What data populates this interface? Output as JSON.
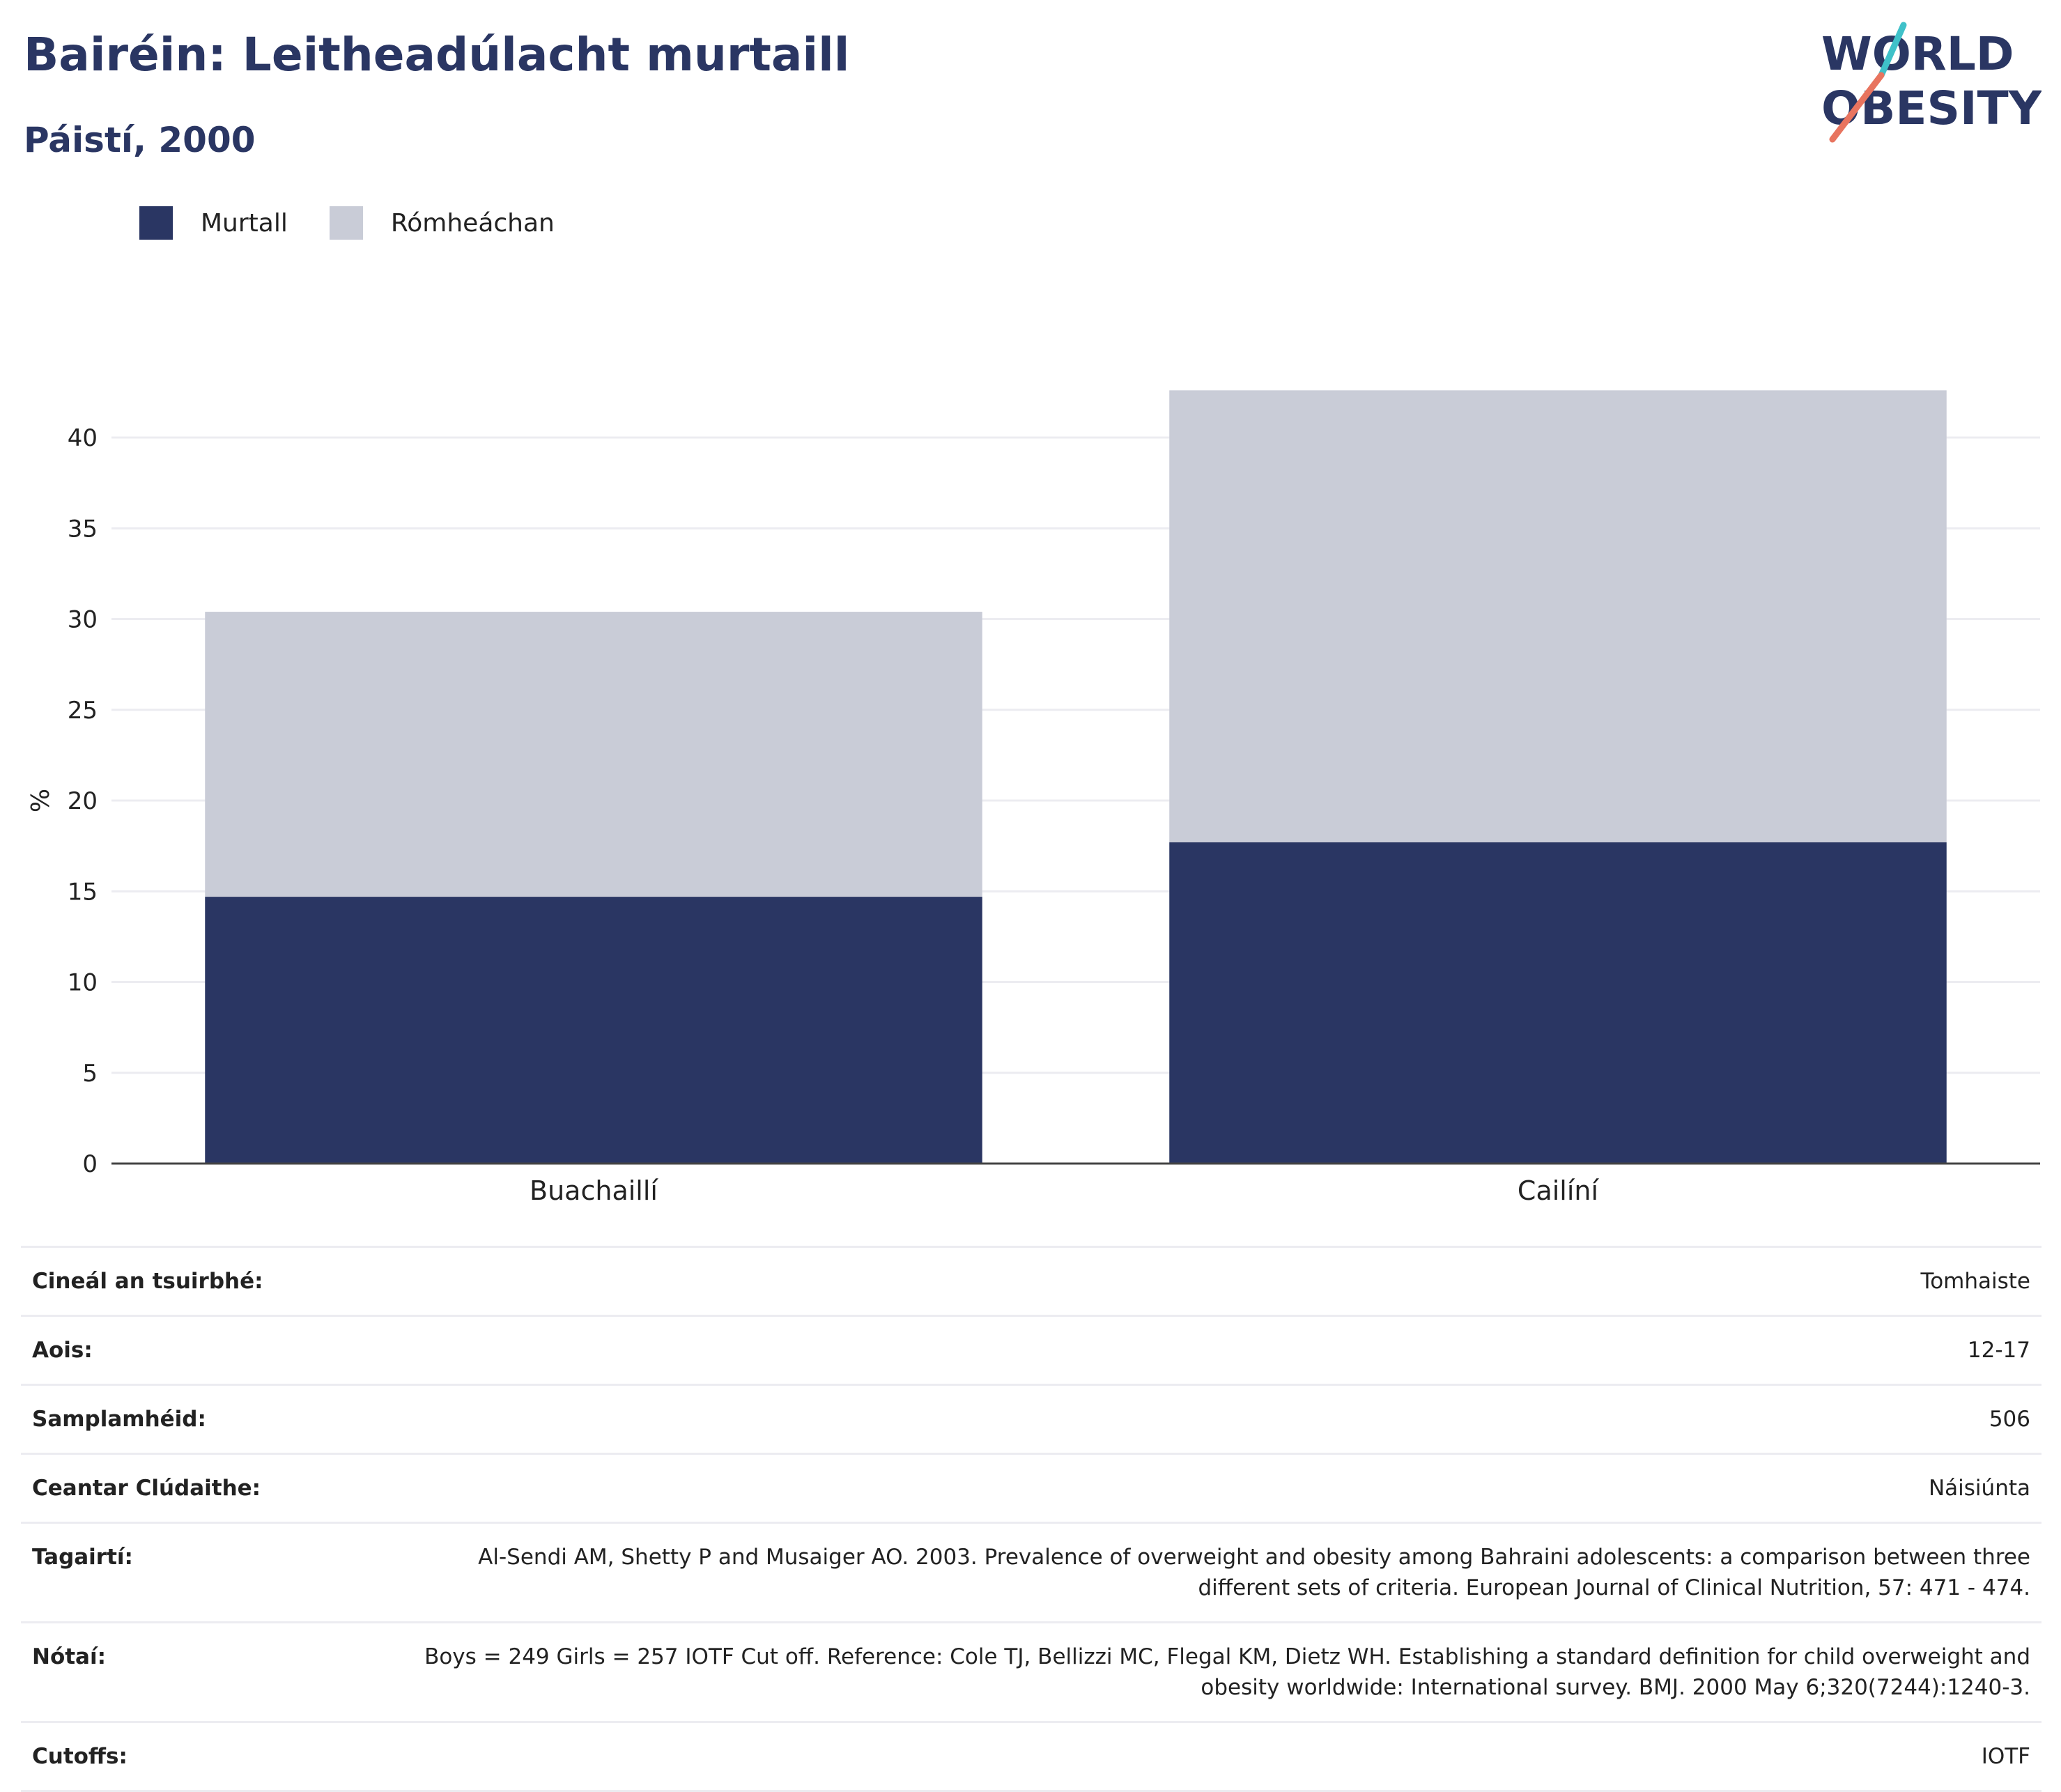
{
  "header": {
    "title": "Bairéin: Leitheadúlacht murtaill",
    "subtitle": "Páistí, 2000"
  },
  "logo": {
    "line1": "WORLD",
    "line2": "OBESITY",
    "icon": "world-obesity-logo"
  },
  "colors": {
    "title": "#2a3663",
    "obese": "#2a3663",
    "overweight": "#c9ccd7",
    "logo_teal": "#3fc1c9",
    "logo_coral": "#e8745f"
  },
  "chart_data": {
    "type": "bar",
    "stacked": true,
    "categories": [
      "Buachaillí",
      "Cailíní"
    ],
    "series": [
      {
        "name": "Murtall",
        "values": [
          14.7,
          17.7
        ],
        "color": "#2a3663"
      },
      {
        "name": "Rómheáchan",
        "values": [
          15.7,
          24.9
        ],
        "color": "#c9ccd7"
      }
    ],
    "ylabel": "%",
    "ylim": [
      0,
      42.6
    ],
    "yticks": [
      0,
      5,
      10,
      15,
      20,
      25,
      30,
      35,
      40
    ],
    "grid": true,
    "legend_position": "top-left"
  },
  "meta": [
    {
      "key": "Cineál an tsuirbhé:",
      "value": "Tomhaiste"
    },
    {
      "key": "Aois:",
      "value": "12-17"
    },
    {
      "key": "Samplamhéid:",
      "value": "506"
    },
    {
      "key": "Ceantar Clúdaithe:",
      "value": "Náisiúnta"
    },
    {
      "key": "Tagairtí:",
      "value": "Al-Sendi AM, Shetty P and Musaiger AO. 2003. Prevalence of overweight and obesity among Bahraini adolescents: a comparison between three different sets of criteria. European Journal of Clinical Nutrition, 57: 471 - 474."
    },
    {
      "key": "Nótaí:",
      "value": "Boys = 249 Girls = 257 IOTF Cut off. Reference: Cole TJ, Bellizzi MC, Flegal KM, Dietz WH. Establishing a standard definition for child overweight and obesity worldwide: International survey. BMJ. 2000 May 6;320(7244):1240-3."
    },
    {
      "key": "Cutoffs:",
      "value": "IOTF"
    }
  ]
}
